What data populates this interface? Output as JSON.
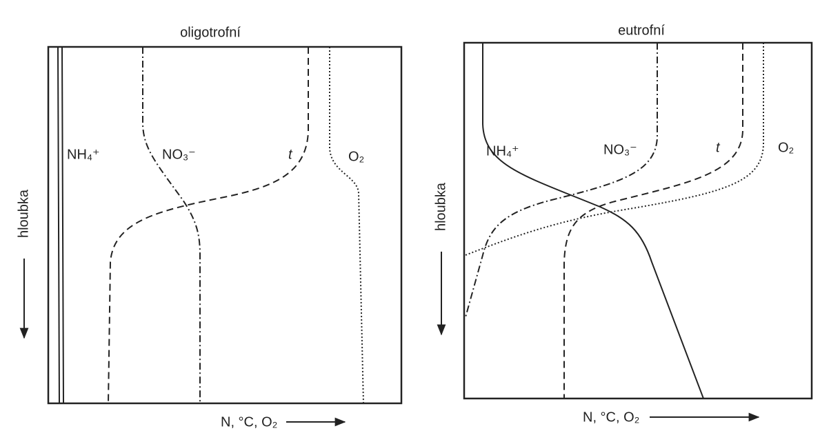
{
  "panels": [
    {
      "title": "oligotrofní",
      "labels": [
        "NH₄⁺",
        "NO₃⁻",
        "t",
        "O₂"
      ],
      "x_label": "N, °C, O₂",
      "y_label": "hloubka"
    },
    {
      "title": "eutrofní",
      "labels": [
        "NH₄⁺",
        "NO₃⁻",
        "t",
        "O₂"
      ],
      "x_label": "N, °C, O₂",
      "y_label": "hloubka"
    }
  ]
}
